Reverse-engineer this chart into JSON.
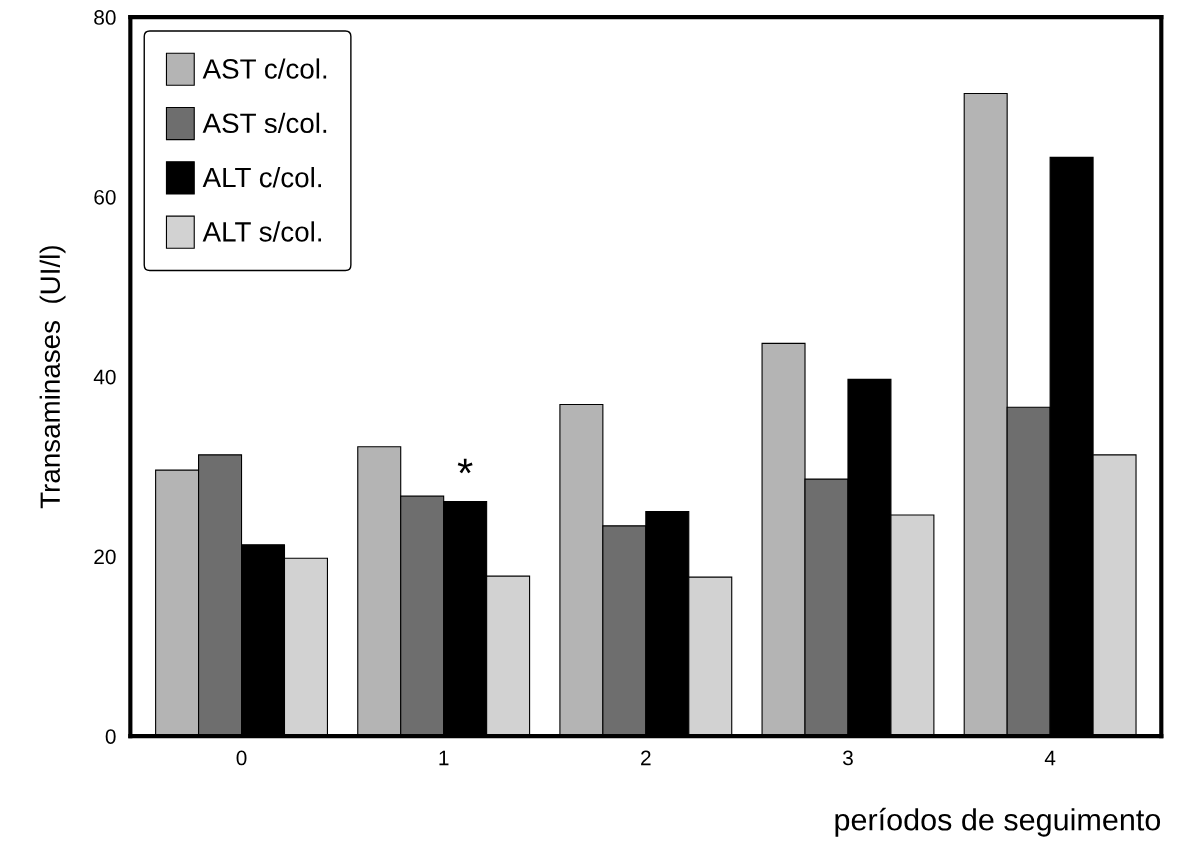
{
  "chart_data": {
    "type": "bar",
    "ylabel": "Transaminases  (UI/l)",
    "xlabel": "períodos de seguimento",
    "categories": [
      "0",
      "1",
      "2",
      "3",
      "4"
    ],
    "series": [
      {
        "name": "AST c/col.",
        "color": "#b4b4b4",
        "values": [
          29.6,
          32.2,
          36.9,
          43.7,
          71.5
        ]
      },
      {
        "name": "AST s/col.",
        "color": "#6e6e6e",
        "values": [
          31.3,
          26.7,
          23.4,
          28.6,
          36.6
        ]
      },
      {
        "name": "ALT c/col.",
        "color": "#000000",
        "values": [
          21.3,
          26.1,
          25,
          39.7,
          64.4
        ]
      },
      {
        "name": "ALT s/col.",
        "color": "#d2d2d2",
        "values": [
          19.8,
          17.8,
          17.7,
          24.6,
          31.3
        ]
      }
    ],
    "annotations": [
      {
        "text": "*",
        "x": "1",
        "y": 26.1
      }
    ],
    "ylim": [
      0,
      80
    ],
    "yticks": [
      0,
      20,
      40,
      60,
      80
    ],
    "grid": false,
    "legend": "top left"
  }
}
